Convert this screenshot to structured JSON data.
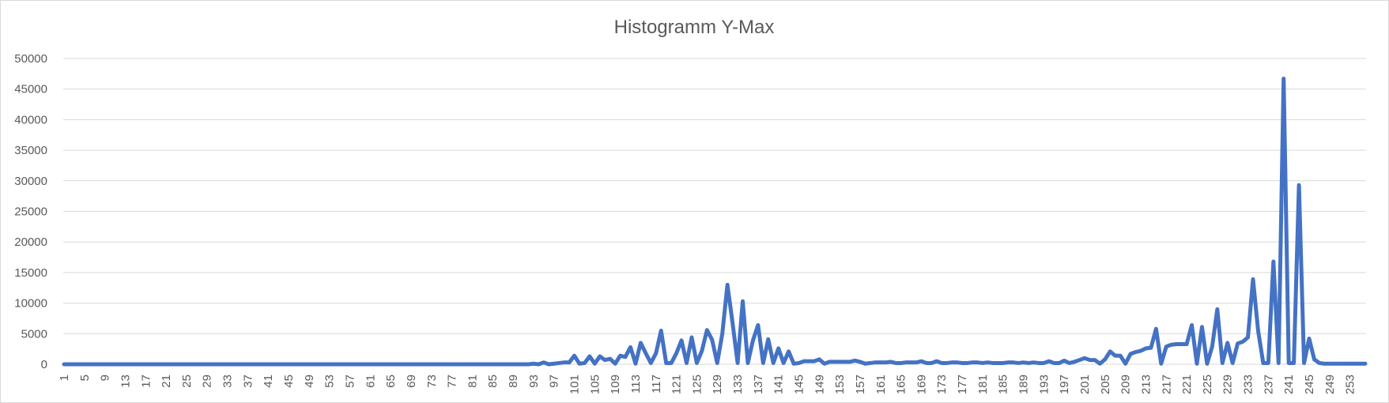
{
  "chart_data": {
    "type": "line",
    "title": "Histogramm Y-Max",
    "xlabel": "",
    "ylabel": "",
    "x": [
      1,
      2,
      3,
      4,
      5,
      6,
      7,
      8,
      9,
      10,
      11,
      12,
      13,
      14,
      15,
      16,
      17,
      18,
      19,
      20,
      21,
      22,
      23,
      24,
      25,
      26,
      27,
      28,
      29,
      30,
      31,
      32,
      33,
      34,
      35,
      36,
      37,
      38,
      39,
      40,
      41,
      42,
      43,
      44,
      45,
      46,
      47,
      48,
      49,
      50,
      51,
      52,
      53,
      54,
      55,
      56,
      57,
      58,
      59,
      60,
      61,
      62,
      63,
      64,
      65,
      66,
      67,
      68,
      69,
      70,
      71,
      72,
      73,
      74,
      75,
      76,
      77,
      78,
      79,
      80,
      81,
      82,
      83,
      84,
      85,
      86,
      87,
      88,
      89,
      90,
      91,
      92,
      93,
      94,
      95,
      96,
      97,
      98,
      99,
      100,
      101,
      102,
      103,
      104,
      105,
      106,
      107,
      108,
      109,
      110,
      111,
      112,
      113,
      114,
      115,
      116,
      117,
      118,
      119,
      120,
      121,
      122,
      123,
      124,
      125,
      126,
      127,
      128,
      129,
      130,
      131,
      132,
      133,
      134,
      135,
      136,
      137,
      138,
      139,
      140,
      141,
      142,
      143,
      144,
      145,
      146,
      147,
      148,
      149,
      150,
      151,
      152,
      153,
      154,
      155,
      156,
      157,
      158,
      159,
      160,
      161,
      162,
      163,
      164,
      165,
      166,
      167,
      168,
      169,
      170,
      171,
      172,
      173,
      174,
      175,
      176,
      177,
      178,
      179,
      180,
      181,
      182,
      183,
      184,
      185,
      186,
      187,
      188,
      189,
      190,
      191,
      192,
      193,
      194,
      195,
      196,
      197,
      198,
      199,
      200,
      201,
      202,
      203,
      204,
      205,
      206,
      207,
      208,
      209,
      210,
      211,
      212,
      213,
      214,
      215,
      216,
      217,
      218,
      219,
      220,
      221,
      222,
      223,
      224,
      225,
      226,
      227,
      228,
      229,
      230,
      231,
      232,
      233,
      234,
      235,
      236,
      237,
      238,
      239,
      240,
      241,
      242,
      243,
      244,
      245,
      246,
      247,
      248,
      249,
      250,
      251,
      252,
      253,
      254,
      255,
      256
    ],
    "x_tick_labels": [
      "1",
      "5",
      "9",
      "13",
      "17",
      "21",
      "25",
      "29",
      "33",
      "37",
      "41",
      "45",
      "49",
      "53",
      "57",
      "61",
      "65",
      "69",
      "73",
      "77",
      "81",
      "85",
      "89",
      "93",
      "97",
      "101",
      "105",
      "109",
      "113",
      "117",
      "121",
      "125",
      "129",
      "133",
      "137",
      "141",
      "145",
      "149",
      "153",
      "157",
      "161",
      "165",
      "169",
      "173",
      "177",
      "181",
      "185",
      "189",
      "193",
      "197",
      "201",
      "205",
      "209",
      "213",
      "217",
      "221",
      "225",
      "229",
      "233",
      "237",
      "241",
      "245",
      "249",
      "253"
    ],
    "series": [
      {
        "color": "#4472c4",
        "values": [
          0,
          0,
          0,
          0,
          0,
          0,
          0,
          0,
          0,
          0,
          0,
          0,
          0,
          0,
          0,
          0,
          0,
          0,
          0,
          0,
          0,
          0,
          0,
          0,
          0,
          0,
          0,
          0,
          0,
          0,
          0,
          0,
          0,
          0,
          0,
          0,
          0,
          0,
          0,
          0,
          0,
          0,
          0,
          0,
          0,
          0,
          0,
          0,
          0,
          0,
          0,
          0,
          0,
          0,
          0,
          0,
          0,
          0,
          0,
          0,
          0,
          0,
          0,
          0,
          0,
          0,
          0,
          0,
          0,
          0,
          0,
          0,
          0,
          0,
          0,
          0,
          0,
          0,
          0,
          0,
          0,
          0,
          0,
          0,
          0,
          0,
          0,
          0,
          0,
          0,
          0,
          0,
          100,
          0,
          300,
          0,
          100,
          200,
          300,
          300,
          1400,
          100,
          200,
          1300,
          100,
          1300,
          700,
          900,
          100,
          1400,
          1200,
          2800,
          100,
          3500,
          1800,
          200,
          1800,
          5500,
          200,
          200,
          1800,
          3900,
          200,
          4400,
          200,
          2200,
          5600,
          4000,
          200,
          5000,
          13000,
          6800,
          200,
          10300,
          200,
          3900,
          6400,
          200,
          4100,
          200,
          2600,
          200,
          2100,
          100,
          200,
          500,
          500,
          500,
          800,
          100,
          400,
          400,
          400,
          400,
          400,
          600,
          400,
          100,
          200,
          300,
          300,
          300,
          400,
          200,
          200,
          300,
          300,
          300,
          500,
          200,
          200,
          500,
          200,
          200,
          300,
          300,
          200,
          200,
          300,
          300,
          200,
          300,
          200,
          200,
          200,
          300,
          300,
          200,
          300,
          200,
          300,
          200,
          200,
          500,
          200,
          200,
          600,
          200,
          400,
          700,
          1000,
          700,
          700,
          100,
          800,
          2100,
          1400,
          1400,
          100,
          1700,
          2000,
          2200,
          2600,
          2700,
          5800,
          100,
          2900,
          3200,
          3300,
          3300,
          3300,
          6400,
          100,
          6100,
          100,
          2900,
          9000,
          200,
          3500,
          200,
          3400,
          3700,
          4400,
          13900,
          5500,
          200,
          200,
          16800,
          200,
          46700,
          200,
          200,
          29300,
          200,
          4200,
          800,
          200,
          100,
          100,
          100,
          100,
          100,
          100,
          100,
          100,
          100
        ]
      }
    ],
    "ylim": [
      0,
      50000
    ],
    "y_ticks": [
      "0",
      "5000",
      "10000",
      "15000",
      "20000",
      "25000",
      "30000",
      "35000",
      "40000",
      "45000",
      "50000"
    ],
    "grid": true,
    "legend": "none"
  }
}
